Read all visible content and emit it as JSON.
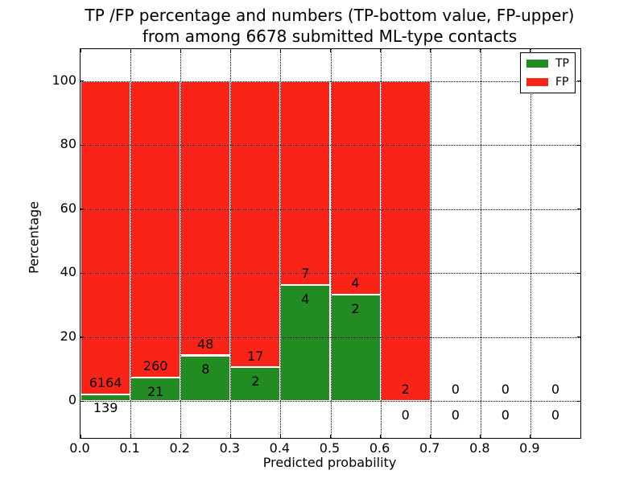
{
  "chart_data": {
    "type": "bar",
    "stacked": true,
    "title_line1": "TP /FP percentage and numbers (TP-bottom value, FP-upper)",
    "title_line2": "from among 6678 submitted ML-type contacts",
    "xlabel": "Predicted probability",
    "ylabel": "Percentage",
    "total_contacts": 6678,
    "xlim": [
      0.0,
      1.0
    ],
    "ylim": [
      -11.5,
      110
    ],
    "xticks": [
      "0.0",
      "0.1",
      "0.2",
      "0.3",
      "0.4",
      "0.5",
      "0.6",
      "0.7",
      "0.8",
      "0.9"
    ],
    "yticks": [
      "0",
      "20",
      "40",
      "60",
      "80",
      "100"
    ],
    "grid": "dotted",
    "bin_width": 0.1,
    "bins": [
      {
        "x_start": 0.0,
        "tp_count": 139,
        "fp_count": 6164,
        "tp_percent": 2.21,
        "fp_percent": 97.79
      },
      {
        "x_start": 0.1,
        "tp_count": 21,
        "fp_count": 260,
        "tp_percent": 7.47,
        "fp_percent": 92.53
      },
      {
        "x_start": 0.2,
        "tp_count": 8,
        "fp_count": 48,
        "tp_percent": 14.29,
        "fp_percent": 85.71
      },
      {
        "x_start": 0.3,
        "tp_count": 2,
        "fp_count": 17,
        "tp_percent": 10.53,
        "fp_percent": 89.47
      },
      {
        "x_start": 0.4,
        "tp_count": 4,
        "fp_count": 7,
        "tp_percent": 36.36,
        "fp_percent": 63.64
      },
      {
        "x_start": 0.5,
        "tp_count": 2,
        "fp_count": 4,
        "tp_percent": 33.33,
        "fp_percent": 66.67
      },
      {
        "x_start": 0.6,
        "tp_count": 0,
        "fp_count": 2,
        "tp_percent": 0.0,
        "fp_percent": 100.0
      },
      {
        "x_start": 0.7,
        "tp_count": 0,
        "fp_count": 0,
        "tp_percent": 0.0,
        "fp_percent": 0.0
      },
      {
        "x_start": 0.8,
        "tp_count": 0,
        "fp_count": 0,
        "tp_percent": 0.0,
        "fp_percent": 0.0
      },
      {
        "x_start": 0.9,
        "tp_count": 0,
        "fp_count": 0,
        "tp_percent": 0.0,
        "fp_percent": 0.0
      }
    ],
    "legend": {
      "position": "upper right",
      "entries": [
        {
          "label": "TP",
          "color": "#228b22"
        },
        {
          "label": "FP",
          "color": "#fa2318"
        }
      ]
    },
    "colors": {
      "tp": "#228b22",
      "fp": "#fa2318",
      "bar_edge": "#ffffff",
      "grid": "#000000",
      "text": "#000000",
      "background": "#ffffff"
    }
  }
}
